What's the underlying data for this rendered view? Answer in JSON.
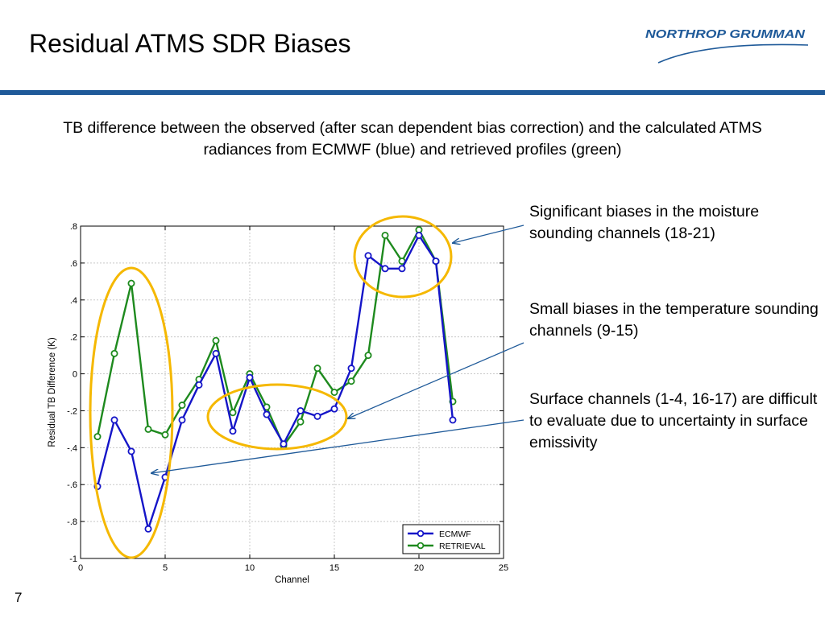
{
  "slide": {
    "title": "Residual ATMS SDR Biases",
    "subtitle": "TB difference between the observed (after scan dependent bias correction) and the calculated ATMS radiances from ECMWF (blue) and retrieved profiles (green)",
    "page_number": "7",
    "logo_text": "NORTHROP GRUMMAN",
    "callouts": {
      "moisture": "Significant biases in the moisture sounding channels (18-21)",
      "temperature": "Small biases in the temperature sounding channels (9-15)",
      "surface": "Surface channels (1-4, 16-17) are difficult to evaluate due to uncertainty in surface emissivity"
    },
    "colors": {
      "accent_rule": "#1f5a99",
      "ecmwf": "#1515c8",
      "retrieval": "#1e8a1e",
      "highlight_ellipse": "#f5b800",
      "arrow": "#1f5a99"
    }
  },
  "chart_data": {
    "type": "line",
    "xlabel": "Channel",
    "ylabel": "Residual TB Difference (K)",
    "xlim": [
      0,
      25
    ],
    "ylim": [
      -1,
      0.8
    ],
    "xticks": [
      0,
      5,
      10,
      15,
      20,
      25
    ],
    "yticks": [
      -1,
      -0.8,
      -0.6,
      -0.4,
      -0.2,
      0,
      0.2,
      0.4,
      0.6,
      0.8
    ],
    "grid": true,
    "legend_position": "bottom-right",
    "x": [
      1,
      2,
      3,
      4,
      5,
      6,
      7,
      8,
      9,
      10,
      11,
      12,
      13,
      14,
      15,
      16,
      17,
      18,
      19,
      20,
      21,
      22
    ],
    "series": [
      {
        "name": "ECMWF",
        "color": "#1515c8",
        "values": [
          -0.61,
          -0.25,
          -0.42,
          -0.84,
          -0.56,
          -0.25,
          -0.06,
          0.11,
          -0.31,
          -0.02,
          -0.22,
          -0.38,
          -0.2,
          -0.23,
          -0.19,
          0.03,
          0.64,
          0.57,
          0.57,
          0.75,
          0.61,
          -0.25
        ]
      },
      {
        "name": "RETRIEVAL",
        "color": "#1e8a1e",
        "values": [
          -0.34,
          0.11,
          0.49,
          -0.3,
          -0.33,
          -0.17,
          -0.03,
          0.18,
          -0.21,
          0.0,
          -0.18,
          -0.39,
          -0.26,
          0.03,
          -0.1,
          -0.04,
          0.1,
          0.75,
          0.61,
          0.78,
          0.61,
          -0.15
        ]
      }
    ]
  }
}
